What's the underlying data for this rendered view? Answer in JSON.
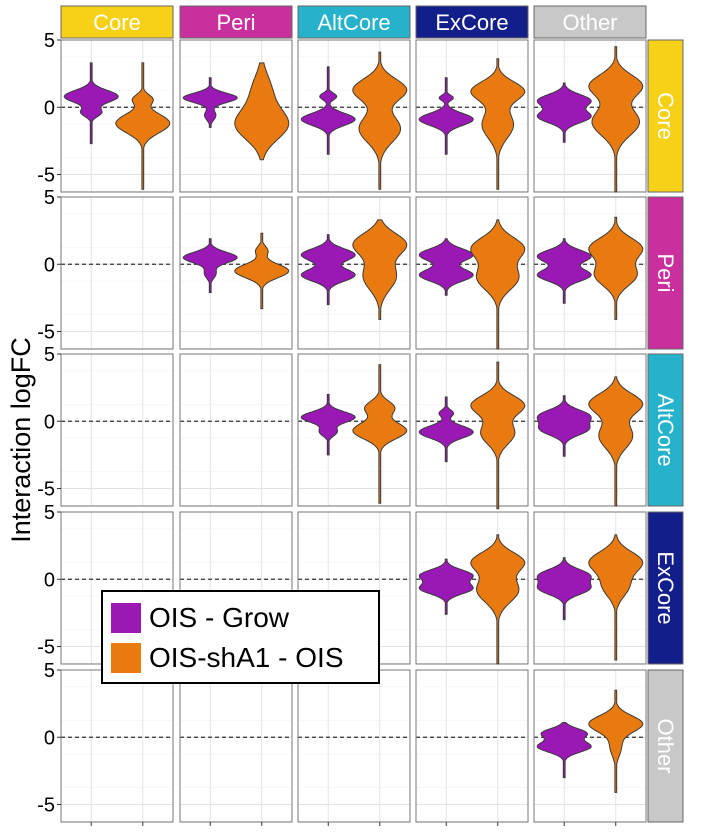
{
  "chart_data": {
    "type": "violin",
    "layout": "facet_grid",
    "ylabel": "Interaction logFC",
    "xlabel": "",
    "ylim": [
      -6.3,
      5.0
    ],
    "yticks": [
      5,
      0,
      -5
    ],
    "reference_line": 0,
    "groups": [
      "Core",
      "Peri",
      "AltCore",
      "ExCore",
      "Other"
    ],
    "column_headers": [
      "Core",
      "Peri",
      "AltCore",
      "ExCore",
      "Other"
    ],
    "row_headers": [
      "Core",
      "Peri",
      "AltCore",
      "ExCore",
      "Other"
    ],
    "strip_colors": {
      "Core": "#f7d117",
      "Peri": "#c9309e",
      "AltCore": "#27b2cc",
      "ExCore": "#121f8a",
      "Other": "#c8c8c8"
    },
    "series": [
      {
        "name": "OIS - Grow",
        "color": "#9a18b4"
      },
      {
        "name": "OIS-shA1 - OIS",
        "color": "#e97a10"
      }
    ],
    "legend": [
      {
        "label": "OIS - Grow",
        "color": "#9a18b4"
      },
      {
        "label": "OIS-shA1 - OIS",
        "color": "#e97a10"
      }
    ],
    "panels": [
      {
        "row": "Core",
        "col": "Core",
        "violins": [
          {
            "series": "OIS - Grow",
            "min": -2.7,
            "max": 3.3,
            "modes": [
              {
                "y": 0.8,
                "w": 0.95,
                "s": 0.45
              },
              {
                "y": -0.4,
                "w": 0.35,
                "s": 0.3
              }
            ]
          },
          {
            "series": "OIS-shA1 - OIS",
            "min": -6.1,
            "max": 3.3,
            "modes": [
              {
                "y": -1.2,
                "w": 0.85,
                "s": 0.7
              },
              {
                "y": 0.6,
                "w": 0.3,
                "s": 0.35
              }
            ]
          }
        ]
      },
      {
        "row": "Core",
        "col": "Peri",
        "violins": [
          {
            "series": "OIS - Grow",
            "min": -1.5,
            "max": 2.2,
            "modes": [
              {
                "y": 0.7,
                "w": 0.95,
                "s": 0.35
              },
              {
                "y": -0.6,
                "w": 0.2,
                "s": 0.35
              }
            ]
          },
          {
            "series": "OIS-shA1 - OIS",
            "min": -3.9,
            "max": 3.3,
            "modes": [
              {
                "y": -1.3,
                "w": 0.4,
                "s": 1.1
              },
              {
                "y": 1.2,
                "w": 0.15,
                "s": 1.2
              }
            ]
          }
        ]
      },
      {
        "row": "Core",
        "col": "AltCore",
        "violins": [
          {
            "series": "OIS - Grow",
            "min": -3.5,
            "max": 3.0,
            "modes": [
              {
                "y": -0.9,
                "w": 0.95,
                "s": 0.45
              },
              {
                "y": 0.8,
                "w": 0.3,
                "s": 0.25
              }
            ]
          },
          {
            "series": "OIS-shA1 - OIS",
            "min": -6.1,
            "max": 4.1,
            "modes": [
              {
                "y": 1.3,
                "w": 0.45,
                "s": 0.8
              },
              {
                "y": -1.6,
                "w": 0.35,
                "s": 1.0
              }
            ]
          }
        ]
      },
      {
        "row": "Core",
        "col": "ExCore",
        "violins": [
          {
            "series": "OIS - Grow",
            "min": -3.5,
            "max": 2.2,
            "modes": [
              {
                "y": -0.9,
                "w": 0.95,
                "s": 0.45
              },
              {
                "y": 0.7,
                "w": 0.25,
                "s": 0.2
              }
            ]
          },
          {
            "series": "OIS-shA1 - OIS",
            "min": -6.1,
            "max": 3.6,
            "modes": [
              {
                "y": 1.2,
                "w": 0.5,
                "s": 0.7
              },
              {
                "y": -1.3,
                "w": 0.3,
                "s": 1.0
              }
            ]
          }
        ]
      },
      {
        "row": "Core",
        "col": "Other",
        "violins": [
          {
            "series": "OIS - Grow",
            "min": -2.6,
            "max": 1.8,
            "modes": [
              {
                "y": 0.5,
                "w": 0.75,
                "s": 0.45
              },
              {
                "y": -0.7,
                "w": 0.75,
                "s": 0.45
              }
            ]
          },
          {
            "series": "OIS-shA1 - OIS",
            "min": -6.3,
            "max": 4.5,
            "modes": [
              {
                "y": 1.6,
                "w": 0.5,
                "s": 0.8
              },
              {
                "y": -1.1,
                "w": 0.45,
                "s": 1.0
              }
            ]
          }
        ]
      },
      {
        "row": "Peri",
        "col": "Peri",
        "violins": [
          {
            "series": "OIS - Grow",
            "min": -2.1,
            "max": 1.9,
            "modes": [
              {
                "y": 0.5,
                "w": 0.95,
                "s": 0.4
              },
              {
                "y": -0.7,
                "w": 0.2,
                "s": 0.35
              }
            ]
          },
          {
            "series": "OIS-shA1 - OIS",
            "min": -3.3,
            "max": 2.3,
            "modes": [
              {
                "y": -0.5,
                "w": 0.9,
                "s": 0.5
              },
              {
                "y": 1.0,
                "w": 0.2,
                "s": 0.35
              }
            ]
          }
        ]
      },
      {
        "row": "Peri",
        "col": "AltCore",
        "violins": [
          {
            "series": "OIS - Grow",
            "min": -3.0,
            "max": 2.2,
            "modes": [
              {
                "y": 0.7,
                "w": 0.8,
                "s": 0.45
              },
              {
                "y": -0.8,
                "w": 0.8,
                "s": 0.45
              }
            ]
          },
          {
            "series": "OIS-shA1 - OIS",
            "min": -4.1,
            "max": 3.3,
            "modes": [
              {
                "y": 1.5,
                "w": 0.55,
                "s": 0.8
              },
              {
                "y": -0.9,
                "w": 0.35,
                "s": 1.0
              }
            ]
          }
        ]
      },
      {
        "row": "Peri",
        "col": "ExCore",
        "violins": [
          {
            "series": "OIS - Grow",
            "min": -2.3,
            "max": 1.9,
            "modes": [
              {
                "y": 0.7,
                "w": 0.8,
                "s": 0.45
              },
              {
                "y": -0.8,
                "w": 0.8,
                "s": 0.45
              }
            ]
          },
          {
            "series": "OIS-shA1 - OIS",
            "min": -6.3,
            "max": 3.3,
            "modes": [
              {
                "y": 1.2,
                "w": 0.5,
                "s": 0.8
              },
              {
                "y": -1.0,
                "w": 0.4,
                "s": 0.9
              }
            ]
          }
        ]
      },
      {
        "row": "Peri",
        "col": "Other",
        "violins": [
          {
            "series": "OIS - Grow",
            "min": -2.9,
            "max": 1.9,
            "modes": [
              {
                "y": 0.6,
                "w": 0.75,
                "s": 0.45
              },
              {
                "y": -0.8,
                "w": 0.75,
                "s": 0.45
              }
            ]
          },
          {
            "series": "OIS-shA1 - OIS",
            "min": -4.1,
            "max": 3.5,
            "modes": [
              {
                "y": 1.2,
                "w": 0.5,
                "s": 0.75
              },
              {
                "y": -0.8,
                "w": 0.4,
                "s": 0.8
              }
            ]
          }
        ]
      },
      {
        "row": "AltCore",
        "col": "AltCore",
        "violins": [
          {
            "series": "OIS - Grow",
            "min": -2.5,
            "max": 2.0,
            "modes": [
              {
                "y": 0.3,
                "w": 0.95,
                "s": 0.4
              },
              {
                "y": -0.8,
                "w": 0.3,
                "s": 0.3
              }
            ]
          },
          {
            "series": "OIS-shA1 - OIS",
            "min": -6.1,
            "max": 4.2,
            "modes": [
              {
                "y": -0.7,
                "w": 0.55,
                "s": 0.6
              },
              {
                "y": 1.0,
                "w": 0.3,
                "s": 0.5
              }
            ]
          }
        ]
      },
      {
        "row": "AltCore",
        "col": "ExCore",
        "violins": [
          {
            "series": "OIS - Grow",
            "min": -3.0,
            "max": 1.8,
            "modes": [
              {
                "y": -0.8,
                "w": 0.95,
                "s": 0.45
              },
              {
                "y": 0.6,
                "w": 0.25,
                "s": 0.25
              }
            ]
          },
          {
            "series": "OIS-shA1 - OIS",
            "min": -6.5,
            "max": 4.4,
            "modes": [
              {
                "y": 1.2,
                "w": 0.55,
                "s": 0.7
              },
              {
                "y": -0.9,
                "w": 0.35,
                "s": 0.8
              }
            ]
          }
        ]
      },
      {
        "row": "AltCore",
        "col": "Other",
        "violins": [
          {
            "series": "OIS - Grow",
            "min": -2.6,
            "max": 1.9,
            "modes": [
              {
                "y": 0.4,
                "w": 0.8,
                "s": 0.45
              },
              {
                "y": -0.6,
                "w": 0.75,
                "s": 0.45
              }
            ]
          },
          {
            "series": "OIS-shA1 - OIS",
            "min": -6.3,
            "max": 3.3,
            "modes": [
              {
                "y": 1.3,
                "w": 0.55,
                "s": 0.75
              },
              {
                "y": -1.1,
                "w": 0.35,
                "s": 0.9
              }
            ]
          }
        ]
      },
      {
        "row": "ExCore",
        "col": "ExCore",
        "violins": [
          {
            "series": "OIS - Grow",
            "min": -2.6,
            "max": 1.5,
            "modes": [
              {
                "y": 0.3,
                "w": 0.85,
                "s": 0.4
              },
              {
                "y": -0.7,
                "w": 0.85,
                "s": 0.4
              }
            ]
          },
          {
            "series": "OIS-shA1 - OIS",
            "min": -6.3,
            "max": 3.3,
            "modes": [
              {
                "y": 1.3,
                "w": 0.55,
                "s": 0.7
              },
              {
                "y": -0.8,
                "w": 0.45,
                "s": 0.9
              }
            ]
          }
        ]
      },
      {
        "row": "ExCore",
        "col": "Other",
        "violins": [
          {
            "series": "OIS - Grow",
            "min": -3.0,
            "max": 1.6,
            "modes": [
              {
                "y": 0.3,
                "w": 0.8,
                "s": 0.45
              },
              {
                "y": -0.7,
                "w": 0.8,
                "s": 0.45
              }
            ]
          },
          {
            "series": "OIS-shA1 - OIS",
            "min": -6.0,
            "max": 3.3,
            "modes": [
              {
                "y": 1.3,
                "w": 0.6,
                "s": 0.75
              },
              {
                "y": -0.5,
                "w": 0.3,
                "s": 0.8
              }
            ]
          }
        ]
      },
      {
        "row": "Other",
        "col": "Other",
        "violins": [
          {
            "series": "OIS - Grow",
            "min": -3.0,
            "max": 1.1,
            "modes": [
              {
                "y": 0.3,
                "w": 0.7,
                "s": 0.35
              },
              {
                "y": -0.7,
                "w": 0.85,
                "s": 0.4
              }
            ]
          },
          {
            "series": "OIS-shA1 - OIS",
            "min": -4.1,
            "max": 3.5,
            "modes": [
              {
                "y": 1.0,
                "w": 0.95,
                "s": 0.6
              },
              {
                "y": -0.7,
                "w": 0.2,
                "s": 0.7
              }
            ]
          }
        ]
      }
    ]
  }
}
